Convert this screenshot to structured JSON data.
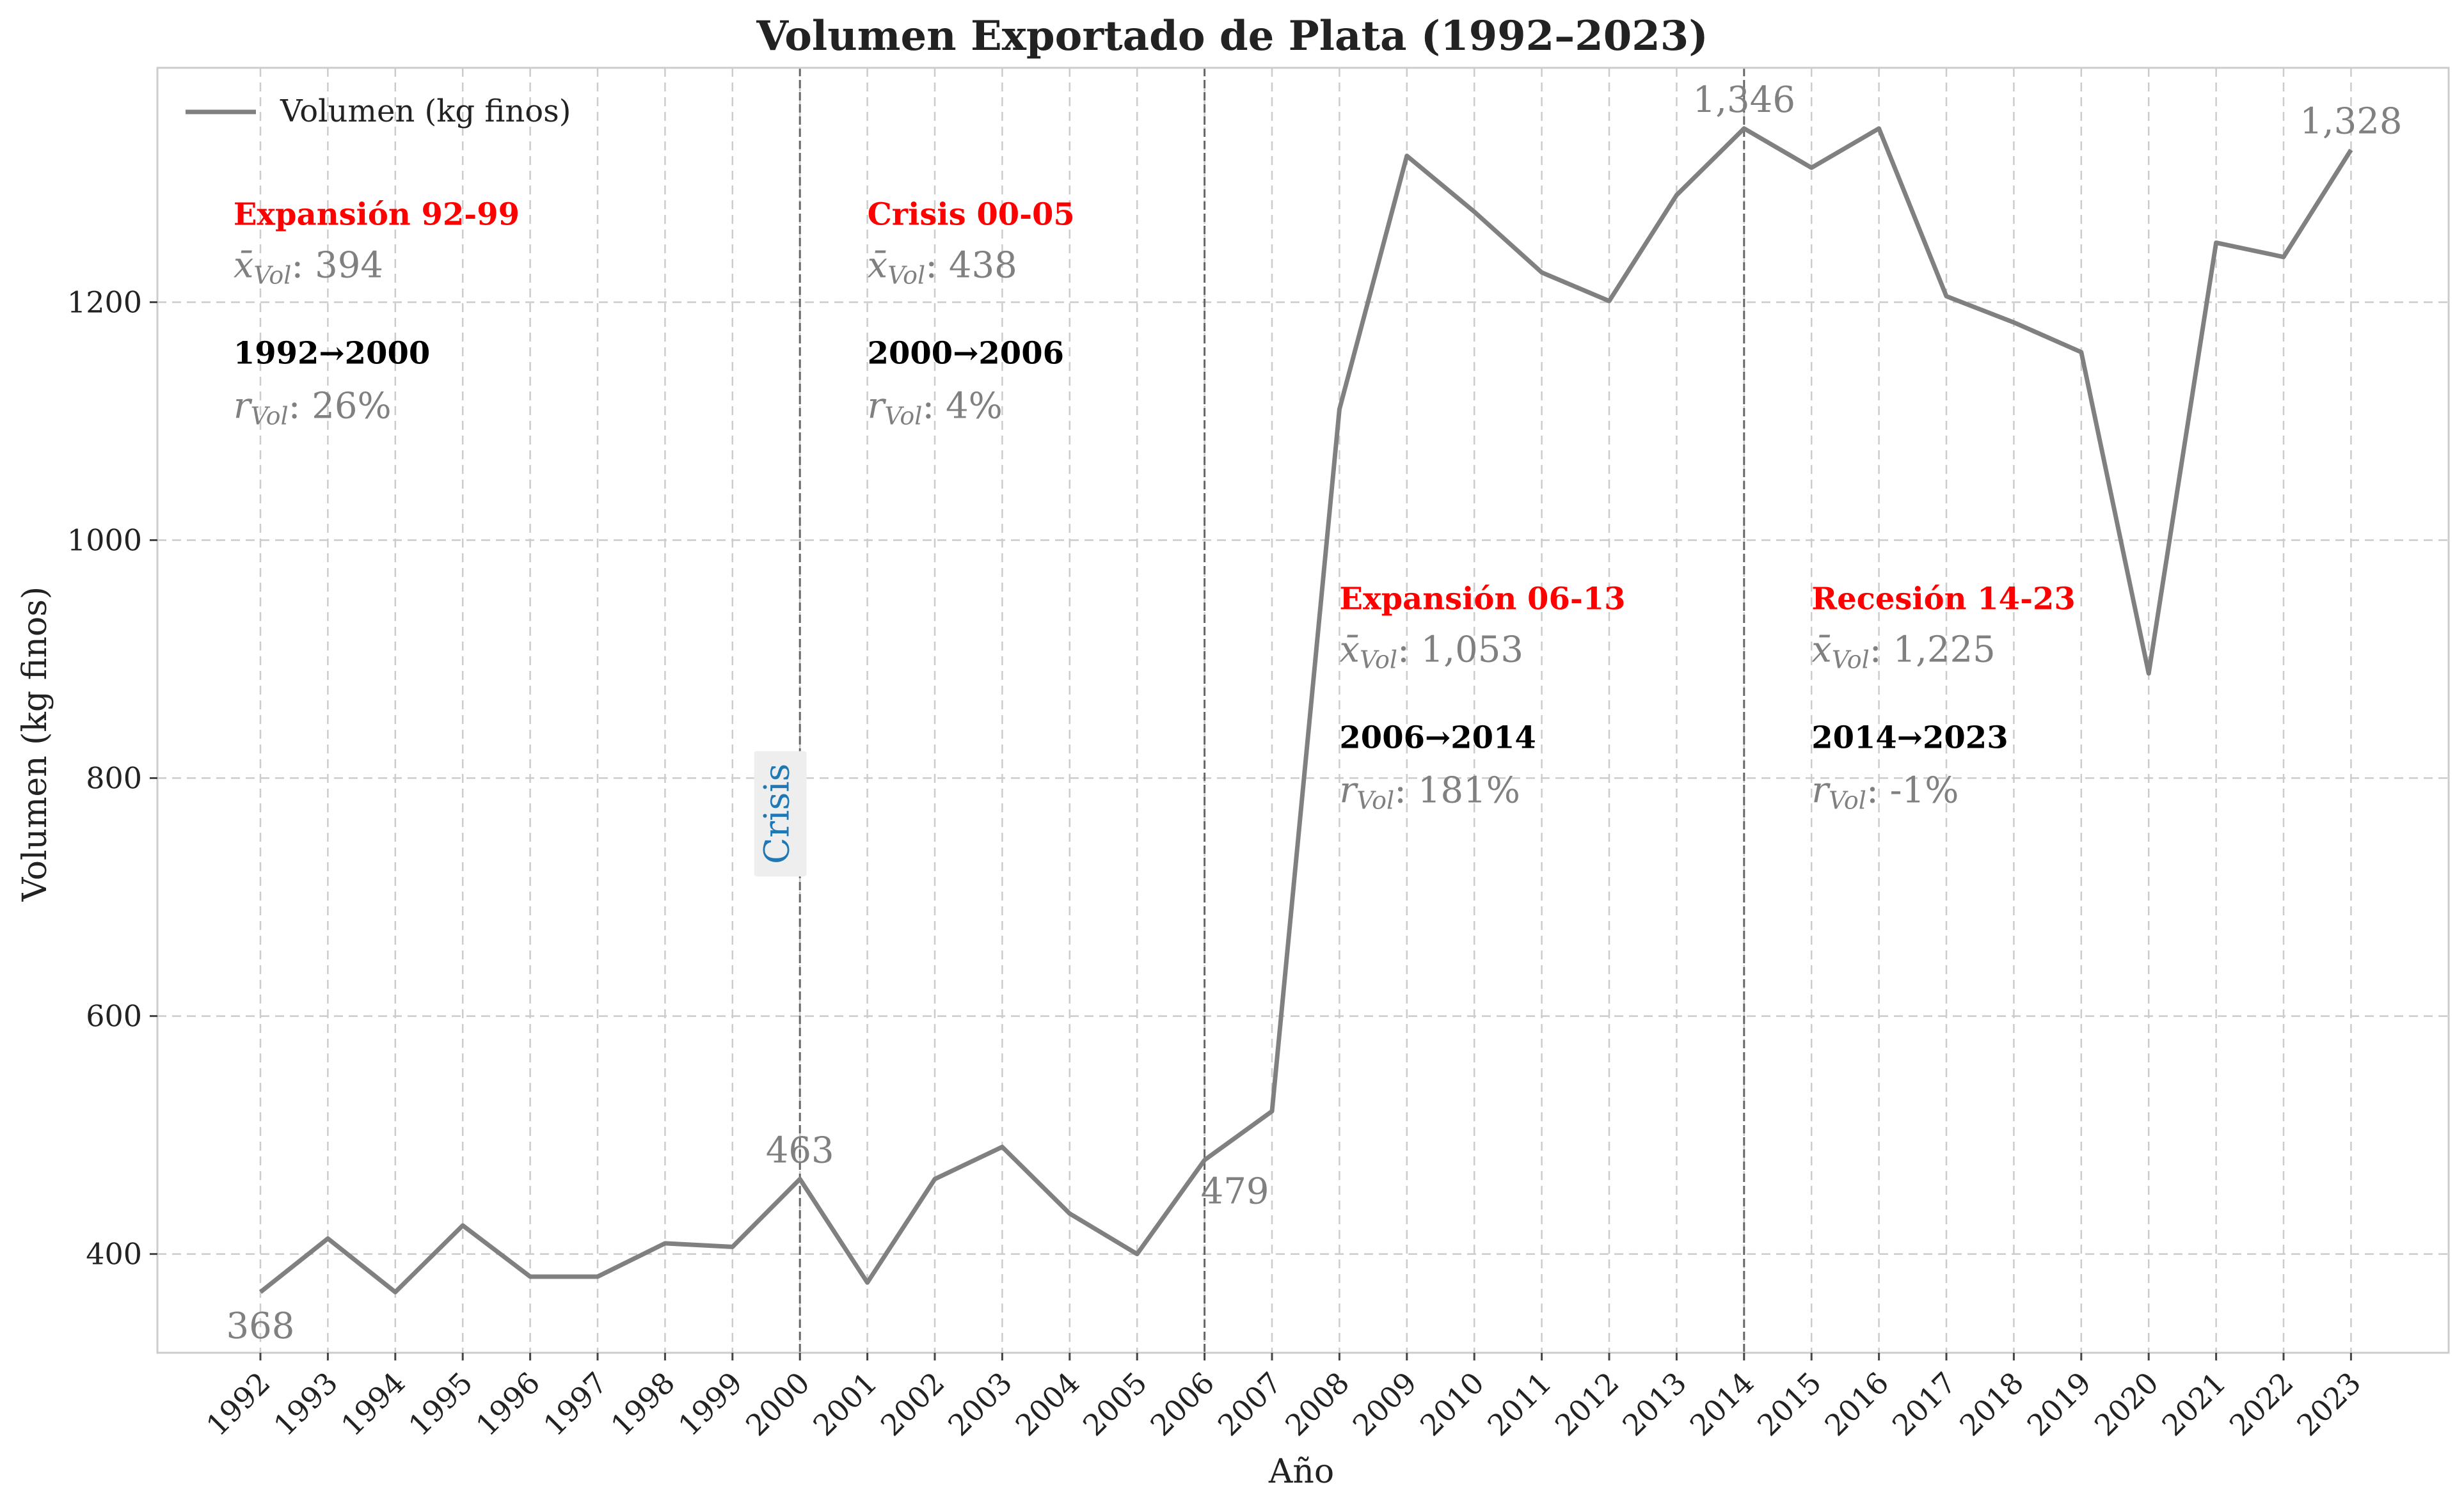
{
  "chart_data": {
    "type": "line",
    "title": "Volumen Exportado de Plata (1992–2023)",
    "xlabel": "Año",
    "ylabel": "Volumen (kg finos)",
    "ylim": [
      317,
      1397
    ],
    "yticks": [
      400,
      600,
      800,
      1000,
      1200
    ],
    "grid": true,
    "legend_position": "top-left",
    "colors": {
      "line": "#808080",
      "period_title": "#ff0000",
      "stat": "#808080",
      "range_label": "#000000",
      "crisis_label": "#1f77b4",
      "vline": "#666666",
      "grid": "#cccccc"
    },
    "x": [
      "1992",
      "1993",
      "1994",
      "1995",
      "1996",
      "1997",
      "1998",
      "1999",
      "2000",
      "2001",
      "2002",
      "2003",
      "2004",
      "2005",
      "2006",
      "2007",
      "2008",
      "2009",
      "2010",
      "2011",
      "2012",
      "2013",
      "2014",
      "2015",
      "2016",
      "2017",
      "2018",
      "2019",
      "2020",
      "2021",
      "2022",
      "2023"
    ],
    "series": [
      {
        "name": "Volumen (kg finos)",
        "values": [
          368,
          413,
          368,
          424,
          381,
          381,
          409,
          406,
          463,
          376,
          463,
          490,
          434,
          400,
          479,
          520,
          1110,
          1323,
          1276,
          1225,
          1201,
          1290,
          1346,
          1313,
          1346,
          1205,
          1183,
          1158,
          888,
          1250,
          1238,
          1328
        ]
      }
    ],
    "vlines": [
      "2000",
      "2006",
      "2014"
    ],
    "point_labels": [
      {
        "x": "1992",
        "y": 368,
        "text": "368",
        "pos": "below"
      },
      {
        "x": "2000",
        "y": 463,
        "text": "463",
        "pos": "above"
      },
      {
        "x": "2006",
        "y": 479,
        "text": "479",
        "pos": "below-right"
      },
      {
        "x": "2014",
        "y": 1346,
        "text": "1,346",
        "pos": "above"
      },
      {
        "x": "2023",
        "y": 1328,
        "text": "1,328",
        "pos": "above"
      }
    ],
    "crisis_label": {
      "text": "Crisis",
      "x": "1999.7",
      "y": 770
    },
    "periods": [
      {
        "title": "Expansión 92-99",
        "mean": "394",
        "range": "1992→2000",
        "growth": "26%",
        "anchor_x": "1991.6",
        "top_y": 1265
      },
      {
        "title": "Crisis 00-05",
        "mean": "438",
        "range": "2000→2006",
        "growth": "4%",
        "anchor_x": "2001",
        "top_y": 1265
      },
      {
        "title": "Expansión 06-13",
        "mean": "1,053",
        "range": "2006→2014",
        "growth": "181%",
        "anchor_x": "2008",
        "top_y": 942
      },
      {
        "title": "Recesión 14-23",
        "mean": "1,225",
        "range": "2014→2023",
        "growth": "-1%",
        "anchor_x": "2015",
        "top_y": 942
      }
    ],
    "mean_symbol": "x̄",
    "growth_symbol": "r",
    "subscript": "Vol"
  }
}
